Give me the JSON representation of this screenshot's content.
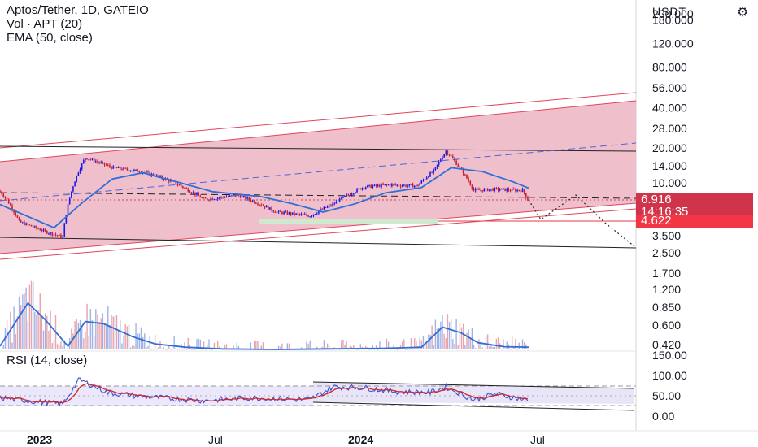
{
  "header": {
    "symbol_line": "Aptos/Tether, 1D, GATEIO",
    "volume_line": "Vol · APT (20)",
    "ema_line": "EMA (50, close)",
    "currency": "USDT"
  },
  "rsi_panel": {
    "title": "RSI (14, close)"
  },
  "badges": {
    "last_price": "6.916",
    "countdown": "14:16:35",
    "target_price": "4.622"
  },
  "colors": {
    "candle_up": "#1a1ae6",
    "candle_down": "#c81e32",
    "ema": "#2f6fd6",
    "volume_ma": "#2f6fd6",
    "channel_fill": "#eaa4b6",
    "channel_line": "#e0465a",
    "rsi_line": "#3c50d8",
    "rsi_ma": "#d02828",
    "badge_last": "#d0344a",
    "badge_target": "#f23645"
  },
  "chart_data": [
    {
      "type": "line",
      "panel": "price",
      "scale": "log",
      "yticks": [
        "200.000",
        "180.000",
        "120.000",
        "80.000",
        "56.000",
        "40.000",
        "28.000",
        "20.000",
        "14.000",
        "10.000",
        "3.500",
        "2.500"
      ],
      "xticks": [
        "2023",
        "Jul",
        "2024",
        "Jul"
      ],
      "series": [
        {
          "name": "Aptos/Tether",
          "x": [
            "2022-10-19",
            "2022-11-10",
            "2022-12-10",
            "2022-12-30",
            "2023-01-25",
            "2023-02-25",
            "2023-03-31",
            "2023-05-01",
            "2023-06-10",
            "2023-07-20",
            "2023-09-01",
            "2023-10-10",
            "2023-11-05",
            "2023-12-10",
            "2024-01-10",
            "2024-02-10",
            "2024-03-01",
            "2024-03-14",
            "2024-03-31",
            "2024-04-15",
            "2024-05-10",
            "2024-06-10",
            "2024-06-17"
          ],
          "values": [
            8.5,
            4.6,
            3.8,
            3.4,
            16.5,
            13.5,
            12.5,
            10.5,
            7.2,
            7.8,
            5.6,
            5.2,
            6.5,
            9.2,
            9.6,
            9.4,
            12.8,
            18.8,
            13.0,
            8.6,
            8.8,
            8.6,
            6.916
          ]
        },
        {
          "name": "EMA (50, close)",
          "x": [
            "2022-10-19",
            "2022-12-20",
            "2023-01-20",
            "2023-02-25",
            "2023-04-01",
            "2023-05-10",
            "2023-06-20",
            "2023-08-15",
            "2023-09-20",
            "2023-10-25",
            "2023-12-01",
            "2024-01-05",
            "2024-02-15",
            "2024-03-20",
            "2024-04-25",
            "2024-05-30",
            "2024-06-17"
          ],
          "values": [
            6.5,
            4.1,
            6.6,
            10.8,
            12.2,
            10.2,
            8.4,
            7.6,
            6.6,
            5.6,
            6.6,
            8.2,
            9.1,
            13.5,
            12.5,
            10.2,
            9.0
          ]
        }
      ],
      "annotations": [
        "6.916",
        "14:16:35",
        "4.622"
      ]
    },
    {
      "type": "bar",
      "panel": "volume",
      "yticks": [
        "1.700",
        "1.200",
        "0.850",
        "0.600",
        "0.420"
      ],
      "series": [
        {
          "name": "Vol · APT (20)",
          "x": [
            "2022-10-19",
            "2022-11-20",
            "2022-12-10",
            "2023-01-05",
            "2023-01-25",
            "2023-02-15",
            "2023-03-20",
            "2023-04-15",
            "2023-05-20",
            "2023-07-01",
            "2023-09-01",
            "2023-11-01",
            "2024-01-01",
            "2024-02-15",
            "2024-03-10",
            "2024-03-31",
            "2024-04-20",
            "2024-05-20",
            "2024-06-17"
          ],
          "values": [
            0.38,
            1.15,
            0.85,
            0.38,
            0.82,
            0.78,
            0.55,
            0.42,
            0.36,
            0.33,
            0.32,
            0.33,
            0.34,
            0.36,
            0.72,
            0.62,
            0.44,
            0.37,
            0.36
          ]
        }
      ]
    },
    {
      "type": "line",
      "panel": "rsi",
      "yticks": [
        "150.00",
        "100.00",
        "50.00",
        "0.00"
      ],
      "series": [
        {
          "name": "RSI (14, close)",
          "x": [
            "2022-10-19",
            "2022-12-01",
            "2022-12-30",
            "2023-01-18",
            "2023-02-20",
            "2023-04-01",
            "2023-06-10",
            "2023-08-01",
            "2023-10-10",
            "2023-11-05",
            "2023-12-10",
            "2024-01-20",
            "2024-02-25",
            "2024-03-14",
            "2024-04-15",
            "2024-05-10",
            "2024-06-17"
          ],
          "values": [
            45,
            35,
            30,
            90,
            58,
            48,
            38,
            45,
            40,
            72,
            70,
            60,
            58,
            72,
            40,
            55,
            38
          ]
        }
      ]
    }
  ]
}
